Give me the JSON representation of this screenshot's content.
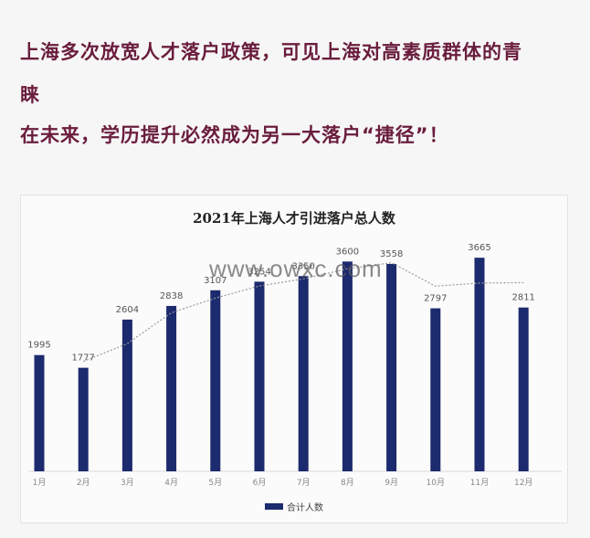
{
  "headline": {
    "line1": "上海多次放宽人才落户政策，可见上海对高素质群体的青",
    "line2": "睐",
    "line3": "在未来，学历提升必然成为另一大落户“捷径”！",
    "color": "#6a1d3c"
  },
  "watermark": "www.owxc.com",
  "chart_data": {
    "type": "bar",
    "title": "2021年上海人才引进落户总人数",
    "categories": [
      "1月",
      "2月",
      "3月",
      "4月",
      "5月",
      "6月",
      "7月",
      "8月",
      "9月",
      "10月",
      "11月",
      "12月"
    ],
    "series": [
      {
        "name": "合计人数",
        "values": [
          1995,
          1777,
          2604,
          2838,
          3107,
          3254,
          3350,
          3600,
          3558,
          2797,
          3665,
          2811
        ],
        "color": "#1c2a6e"
      }
    ],
    "trendline": {
      "type": "moving-average",
      "period": 2,
      "style": "dotted",
      "color": "#9a9a9a"
    },
    "legend": {
      "position": "bottom",
      "entries": [
        "合计人数"
      ]
    },
    "xlabel": "",
    "ylabel": "",
    "ylim": [
      0,
      4000
    ],
    "data_labels": true,
    "grid": false
  }
}
